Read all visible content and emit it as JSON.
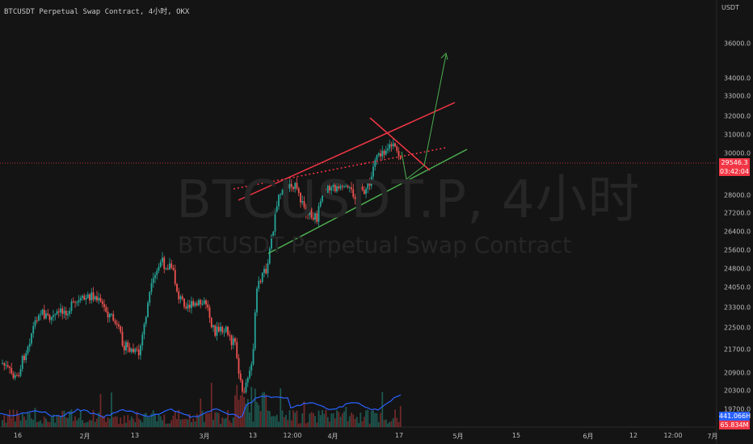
{
  "header": {
    "title": "BTCUSDT Perpetual Swap Contract, 4小时, OKX",
    "currency": "USDT"
  },
  "watermark": {
    "symbol": "BTCUSDT.P, 4小时",
    "description": "BTCUSDT Perpetual Swap Contract"
  },
  "price_axis": {
    "ticks": [
      "36000.0",
      "34000.0",
      "33000.0",
      "32000.0",
      "31000.0",
      "30000.0",
      "28000.0",
      "27200.0",
      "26400.0",
      "25600.0",
      "24800.0",
      "24050.0",
      "23300.0",
      "22500.0",
      "21700.0",
      "20900.0",
      "20300.0",
      "19700.0"
    ]
  },
  "time_axis": {
    "ticks": [
      "16",
      "2月",
      "13",
      "3月",
      "13",
      "12:00",
      "4月",
      "17",
      "5月",
      "15",
      "6月",
      "12",
      "12:00",
      "7月"
    ]
  },
  "badges": {
    "last_price": "29546.3",
    "countdown": "03:42:04",
    "indicator_value": "441.066H",
    "volume_value": "65.834M"
  },
  "colors": {
    "background": "#141414",
    "up": "#26a69a",
    "down": "#ef5350",
    "channel_upper": "#f23645",
    "channel_lower": "#4caf50",
    "indicator_line": "#2962ff"
  },
  "chart_data": {
    "type": "candlestick",
    "symbol": "BTCUSDT Perpetual Swap Contract",
    "interval": "4小时",
    "exchange": "OKX",
    "last_price": 29546.3,
    "price_range": [
      19400,
      36600
    ],
    "price_scale": "log",
    "approx_path_close": [
      [
        "16",
        20900
      ],
      [
        "early 2月",
        23100
      ],
      [
        "2月",
        23400
      ],
      [
        "13",
        21700
      ],
      [
        "mid 2月",
        25200
      ],
      [
        "late 2月",
        23400
      ],
      [
        "3月",
        22500
      ],
      [
        "10 Mar",
        20300
      ],
      [
        "13",
        24050
      ],
      [
        "12:00",
        28000
      ],
      [
        "mid 3月",
        27200
      ],
      [
        "4月",
        28000
      ],
      [
        "early 4月",
        28200
      ],
      [
        "11 Apr",
        30200
      ],
      [
        "14 Apr",
        30800
      ],
      [
        "17",
        29546.3
      ]
    ],
    "annotations": [
      {
        "type": "rising channel upper",
        "color": "red"
      },
      {
        "type": "rising channel lower",
        "color": "green"
      },
      {
        "type": "projected path",
        "direction": "dip then up toward 36000",
        "color": "green"
      },
      {
        "type": "dotted mid line",
        "color": "red"
      },
      {
        "type": "last price line",
        "value": 29546.3,
        "color": "red"
      }
    ]
  }
}
